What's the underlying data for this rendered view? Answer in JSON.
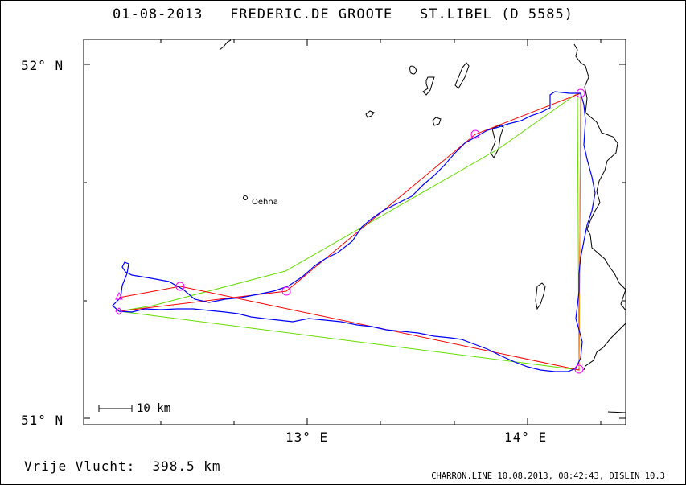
{
  "header": {
    "date": "01-08-2013",
    "pilot": "FREDERIC.DE GROOTE",
    "glider": "ST.LIBEL (D 5585)"
  },
  "axes": {
    "lat_labels": [
      "52° N",
      "51° N"
    ],
    "lon_labels": [
      "13° E",
      "14° E"
    ]
  },
  "map": {
    "place_name": "Oehna",
    "scale_label": "10 km"
  },
  "footer": {
    "distance_label": "Vrije Vlucht:",
    "distance_value": "398.5 km",
    "generator": "CHARRON.LINE 10.08.2013, 08:42:43, DISLIN 10.3"
  },
  "colors": {
    "track": "#0000ff",
    "task": "#ff0000",
    "optimized": "#66dd00",
    "turnpoints": "#ff00ff",
    "coast": "#000000"
  }
}
